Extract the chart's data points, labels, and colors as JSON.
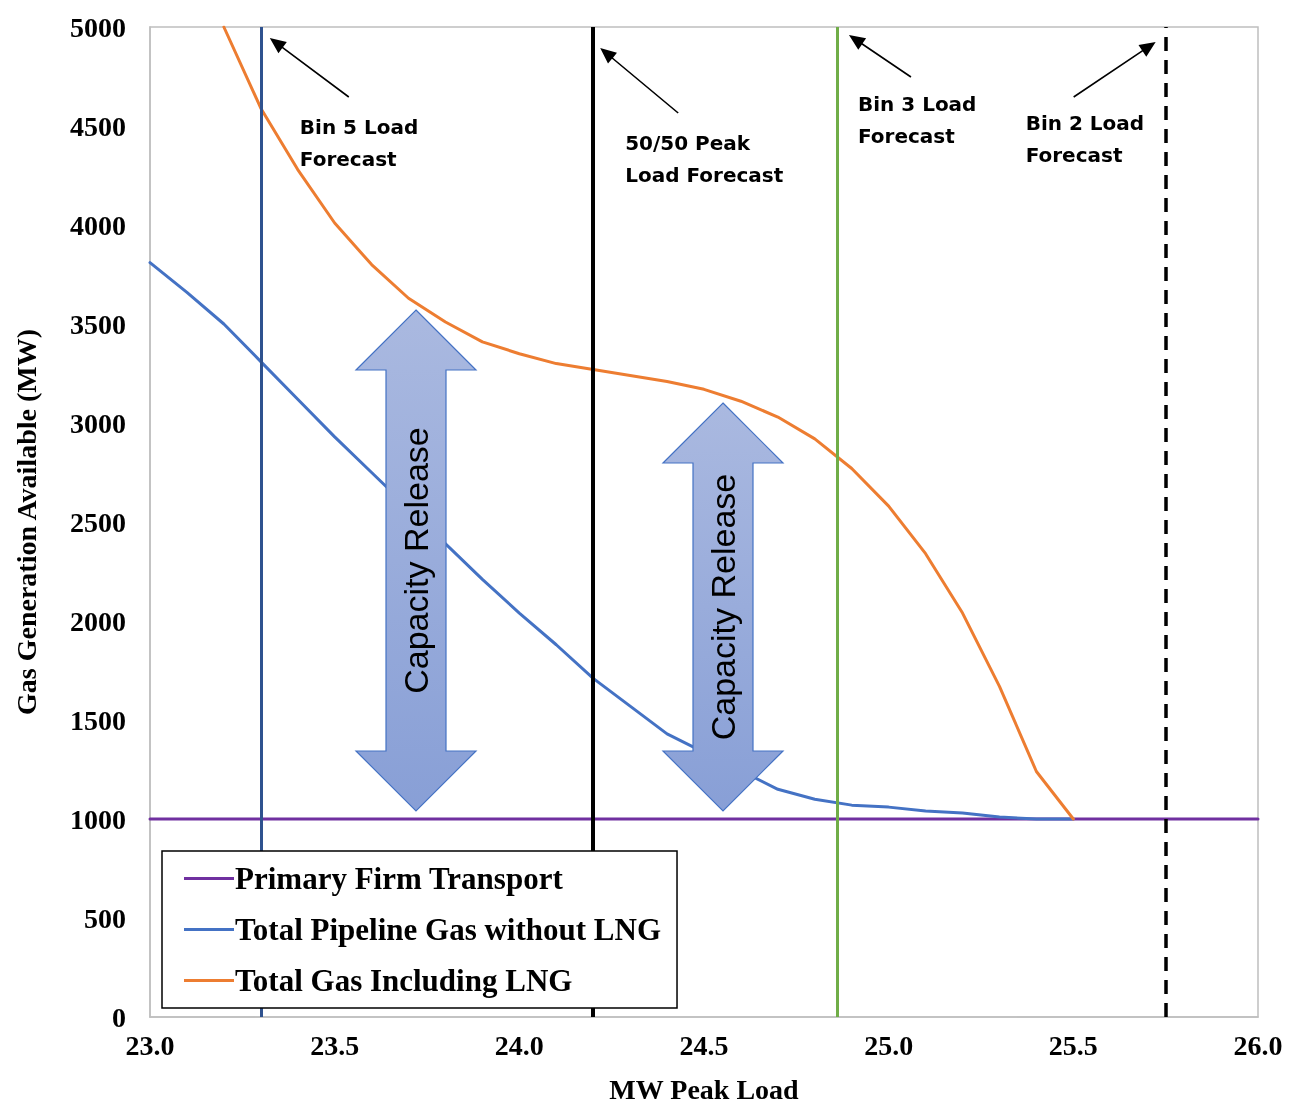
{
  "chart_data": {
    "type": "line",
    "xlabel": "MW Peak Load",
    "ylabel": "Gas Generation Available (MW)",
    "xlim": [
      23,
      26
    ],
    "xticks": [
      {
        "value": 23,
        "label": "23.0"
      },
      {
        "value": 23.5,
        "label": "23.5"
      },
      {
        "value": 24,
        "label": "24.0"
      },
      {
        "value": 24.5,
        "label": "24.5"
      },
      {
        "value": 25,
        "label": "25.0"
      },
      {
        "value": 25.5,
        "label": "25.5"
      },
      {
        "value": 26,
        "label": "26.0"
      }
    ],
    "ylim": [
      0,
      5000
    ],
    "yticks": [
      0,
      500,
      1000,
      1500,
      2000,
      2500,
      3000,
      3500,
      4000,
      4500,
      5000
    ],
    "grid": false,
    "legend": "bottom left",
    "marker": "none",
    "line_style": "solid",
    "series": [
      {
        "name": "Primary Firm Transport",
        "color": "#7030a0",
        "x": [
          23,
          26
        ],
        "values": [
          1000,
          1000
        ]
      },
      {
        "name": "Total Pipeline Gas without LNG",
        "color": "#4472c4",
        "x": [
          23,
          23.1,
          23.2,
          23.3,
          23.4,
          23.5,
          23.6,
          23.7,
          23.8,
          23.9,
          24,
          24.1,
          24.2,
          24.3,
          24.4,
          24.5,
          24.6,
          24.7,
          24.8,
          24.9,
          25,
          25.1,
          25.2,
          25.3,
          25.4,
          25.5
        ],
        "values": [
          3810,
          3660,
          3500,
          3310,
          3120,
          2930,
          2750,
          null,
          null,
          2210,
          2040,
          1880,
          1710,
          1570,
          1430,
          null,
          null,
          1150,
          1100,
          1070,
          1060,
          1040,
          1030,
          1010,
          1000,
          1000
        ]
      },
      {
        "name": "Total Gas Including LNG",
        "color": "#ed7d31",
        "x": [
          23.2,
          23.3,
          23.4,
          23.5,
          23.6,
          23.7,
          23.8,
          23.9,
          24,
          24.1,
          24.2,
          24.3,
          24.4,
          24.5,
          24.6,
          24.7,
          24.8,
          24.9,
          25,
          25.1,
          25.2,
          25.3,
          25.4,
          25.5
        ],
        "values": [
          5000,
          4590,
          4280,
          4010,
          3800,
          3630,
          3510,
          3410,
          3350,
          3300,
          3270,
          3240,
          3210,
          3170,
          3110,
          3030,
          2920,
          2770,
          2580,
          2340,
          2040,
          1670,
          1240,
          1000
        ]
      }
    ],
    "ref_lines": [
      {
        "axis": "x",
        "value": 23.3,
        "label": "Bin 5 Load Forecast",
        "color": "#2f528f",
        "line_style": "solid"
      },
      {
        "axis": "x",
        "value": 24.2,
        "label": "50/50 Peak Load Forecast",
        "color": "#000000",
        "line_style": "solid"
      },
      {
        "axis": "x",
        "value": 24.86,
        "label": "Bin 3 Load Forecast",
        "color": "#70ad47",
        "line_style": "solid"
      },
      {
        "axis": "x",
        "value": 25.75,
        "label": "Bin 2 Load Forecast",
        "color": "#000000",
        "line_style": "dashed"
      }
    ],
    "annotations": [
      "Capacity Release",
      "Capacity Release"
    ]
  }
}
